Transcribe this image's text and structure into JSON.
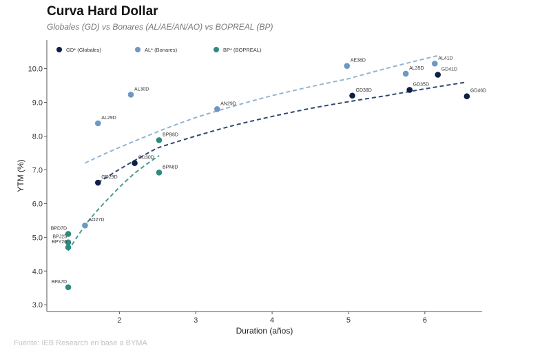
{
  "title": "Curva Hard Dollar",
  "subtitle": "Globales (GD) vs Bonares (AL/AE/AN/AO) vs BOPREAL (BP)",
  "source": "Fuente: IEB Research en base a BYMA",
  "chart_data": {
    "type": "scatter",
    "xlabel": "Duration (años)",
    "ylabel": "YTM (%)",
    "xlim": [
      1.05,
      6.75
    ],
    "ylim": [
      2.8,
      10.85
    ],
    "xticks": [
      2,
      3,
      4,
      5,
      6
    ],
    "yticks": [
      3.0,
      4.0,
      5.0,
      6.0,
      7.0,
      8.0,
      9.0,
      10.0
    ],
    "grid": false,
    "legend_position": "top-left",
    "series": [
      {
        "name": "GD* (Globales)",
        "color": "#0d1f45",
        "points": [
          {
            "label": "GD29D",
            "x": 1.72,
            "y": 6.62
          },
          {
            "label": "GD30D",
            "x": 2.2,
            "y": 7.2
          },
          {
            "label": "GD38D",
            "x": 5.05,
            "y": 9.2
          },
          {
            "label": "GD35D",
            "x": 5.8,
            "y": 9.37
          },
          {
            "label": "GD41D",
            "x": 6.17,
            "y": 9.82
          },
          {
            "label": "GD46D",
            "x": 6.55,
            "y": 9.18
          }
        ],
        "trend": {
          "color": "#2f4a70",
          "points": [
            [
              1.72,
              6.62
            ],
            [
              2.5,
              7.65
            ],
            [
              3.5,
              8.32
            ],
            [
              4.5,
              8.82
            ],
            [
              5.5,
              9.2
            ],
            [
              6.55,
              9.6
            ]
          ]
        }
      },
      {
        "name": "AL* (Bonares)",
        "color": "#6d98c2",
        "points": [
          {
            "label": "AL29D",
            "x": 1.72,
            "y": 8.38
          },
          {
            "label": "AL30D",
            "x": 2.15,
            "y": 9.23
          },
          {
            "label": "AN29D",
            "x": 3.28,
            "y": 8.8
          },
          {
            "label": "AE38D",
            "x": 4.98,
            "y": 10.08
          },
          {
            "label": "AL35D",
            "x": 5.75,
            "y": 9.85
          },
          {
            "label": "AL41D",
            "x": 6.13,
            "y": 10.15
          }
        ],
        "trend": {
          "color": "#93b4d1",
          "points": [
            [
              1.55,
              7.2
            ],
            [
              2.2,
              7.85
            ],
            [
              3.0,
              8.55
            ],
            [
              4.0,
              9.2
            ],
            [
              5.0,
              9.7
            ],
            [
              6.2,
              10.4
            ]
          ]
        }
      },
      {
        "name": "BP* (BOPREAL)",
        "color": "#2f8a7e",
        "points": [
          {
            "label": "BPD7D",
            "x": 1.33,
            "y": 5.1
          },
          {
            "label": "BPJ25",
            "x": 1.33,
            "y": 4.85
          },
          {
            "label": "BPY26",
            "x": 1.33,
            "y": 4.7
          },
          {
            "label": "BPA7D",
            "x": 1.33,
            "y": 3.52
          },
          {
            "label": "BPB8D",
            "x": 2.52,
            "y": 7.88
          },
          {
            "label": "BPA8D",
            "x": 2.52,
            "y": 6.92
          }
        ],
        "extra_points": [
          {
            "label": "AO27D",
            "x": 1.55,
            "y": 5.35,
            "color": "#6d98c2"
          }
        ],
        "trend": {
          "color": "#4a9a96",
          "points": [
            [
              1.33,
              4.6
            ],
            [
              1.6,
              5.5
            ],
            [
              1.9,
              6.25
            ],
            [
              2.2,
              6.9
            ],
            [
              2.52,
              7.42
            ]
          ]
        }
      }
    ]
  }
}
